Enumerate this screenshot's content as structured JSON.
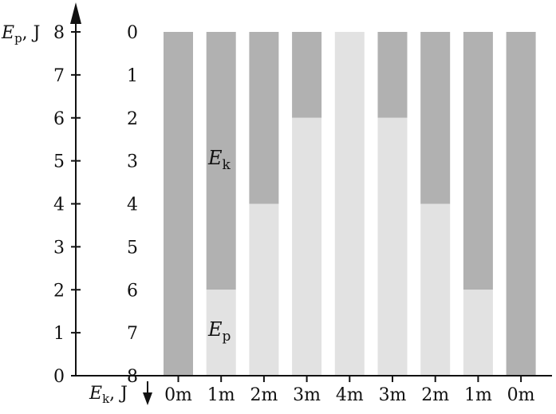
{
  "chart_data": {
    "type": "bar",
    "stacked": true,
    "categories": [
      "0m",
      "1m",
      "2m",
      "3m",
      "4m",
      "3m",
      "2m",
      "1m",
      "0m"
    ],
    "series": [
      {
        "name": "E_p",
        "values": [
          0,
          2,
          4,
          6,
          8,
          6,
          4,
          2,
          0
        ]
      },
      {
        "name": "E_k",
        "values": [
          8,
          6,
          4,
          2,
          0,
          2,
          4,
          6,
          8
        ]
      }
    ],
    "series_labels": {
      "ep": {
        "symbol": "E",
        "subscript": "p"
      },
      "ek": {
        "symbol": "E",
        "subscript": "k"
      }
    },
    "left_axis": {
      "title_symbol": "E",
      "title_subscript": "p",
      "title_unit": ", J",
      "ticks": [
        "0",
        "1",
        "2",
        "3",
        "4",
        "5",
        "6",
        "7",
        "8"
      ],
      "ylim": [
        0,
        8
      ]
    },
    "inner_axis": {
      "ticks": [
        "0",
        "1",
        "2",
        "3",
        "4",
        "5",
        "6",
        "7",
        "8"
      ],
      "direction": "downward"
    },
    "x_axis": {
      "title_symbol": "E",
      "title_subscript": "k",
      "title_unit": ", J"
    },
    "colors": {
      "ep": "#e2e2e2",
      "ek": "#b1b1b1",
      "axis": "#111111"
    },
    "grid": false
  }
}
